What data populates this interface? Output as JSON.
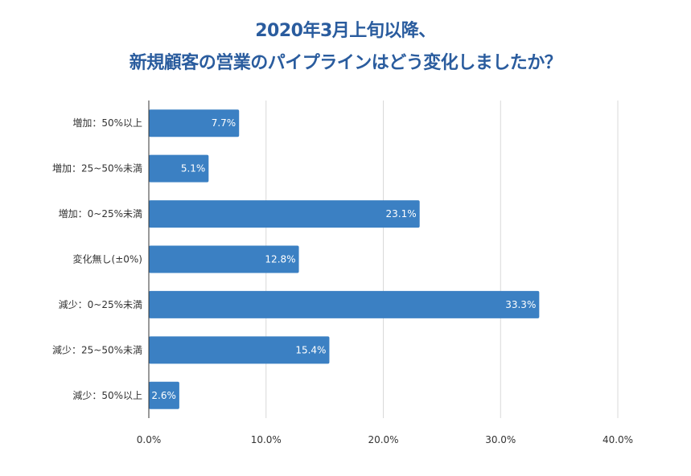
{
  "chart_data": {
    "type": "bar",
    "orientation": "horizontal",
    "title": [
      "2020年3月上旬以降、",
      "新規顧客の営業のパイプラインはどう変化しましたか？"
    ],
    "categories": [
      "増加：50%以上",
      "増加：25~50%未満",
      "増加：0~25%未満",
      "変化無し(±0%)",
      "減少：0~25%未満",
      "減少：25~50%未満",
      "減少：50%以上"
    ],
    "values": [
      7.7,
      5.1,
      23.1,
      12.8,
      33.3,
      15.4,
      2.6
    ],
    "data_labels": [
      "7.7%",
      "5.1%",
      "23.1%",
      "12.8%",
      "33.3%",
      "15.4%",
      "2.6%"
    ],
    "xlim": [
      0,
      40
    ],
    "x_ticks": [
      0,
      10,
      20,
      30,
      40
    ],
    "x_tick_labels": [
      "0.0%",
      "10.0%",
      "20.0%",
      "30.0%",
      "40.0%"
    ],
    "grid": true,
    "bar_color": "#3b80c3",
    "title_color": "#2a5c9e"
  }
}
